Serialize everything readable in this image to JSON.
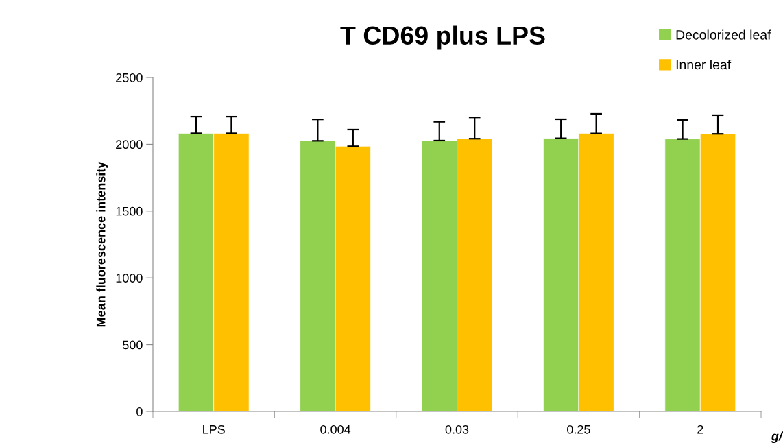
{
  "chart_data": {
    "type": "bar",
    "title": "T CD69 plus LPS",
    "ylabel": "Mean fluorescence intensity",
    "xlabel": "g/",
    "categories": [
      "LPS",
      "0.004",
      "0.03",
      "0.25",
      "2"
    ],
    "series": [
      {
        "name": "Decolorized leaf",
        "color": "#92d050",
        "values": [
          2082,
          2026,
          2028,
          2045,
          2040
        ],
        "errors": [
          125,
          160,
          140,
          142,
          142
        ]
      },
      {
        "name": "Inner leaf",
        "color": "#ffc000",
        "values": [
          2082,
          1985,
          2042,
          2081,
          2078
        ],
        "errors": [
          125,
          125,
          159,
          147,
          140
        ]
      }
    ],
    "ylim": [
      0,
      2500
    ],
    "yticks": [
      0,
      500,
      1000,
      1500,
      2000,
      2500
    ],
    "grid": false,
    "legend": "top right"
  }
}
